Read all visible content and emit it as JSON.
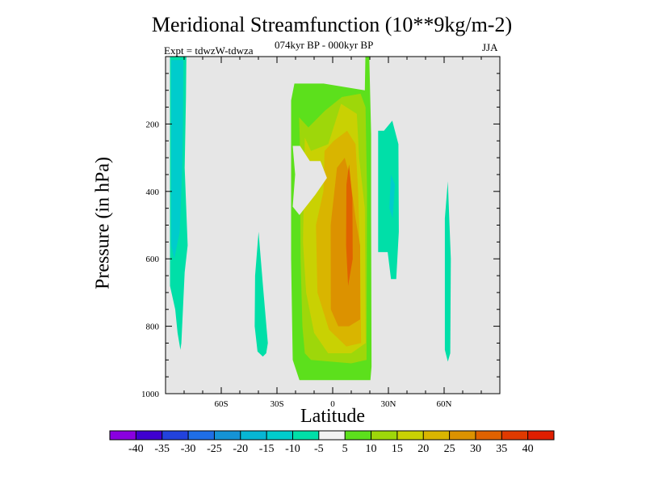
{
  "chart_data": {
    "type": "heatmap",
    "title": "Meridional Streamfunction (10**9kg/m-2)",
    "subtitle": "074kyr BP - 000kyr BP",
    "expt_label": "Expt = tdwzW-tdwza",
    "season": "JJA",
    "xlabel": "Latitude",
    "ylabel": "Pressure (in hPa)",
    "xlim": [
      -90,
      90
    ],
    "ylim": [
      1000,
      0
    ],
    "x_ticks": [
      {
        "value": -60,
        "label": "60S"
      },
      {
        "value": -30,
        "label": "30S"
      },
      {
        "value": 0,
        "label": "0"
      },
      {
        "value": 30,
        "label": "30N"
      },
      {
        "value": 60,
        "label": "60N"
      }
    ],
    "y_ticks": [
      {
        "value": 200,
        "label": "200"
      },
      {
        "value": 400,
        "label": "400"
      },
      {
        "value": 600,
        "label": "600"
      },
      {
        "value": 800,
        "label": "800"
      },
      {
        "value": 1000,
        "label": "1000"
      }
    ],
    "background_color": "#e6e6e6",
    "colorbar": {
      "levels": [
        "-40",
        "-35",
        "-30",
        "-25",
        "-20",
        "-15",
        "-10",
        "-5",
        "5",
        "10",
        "15",
        "20",
        "25",
        "30",
        "35",
        "40"
      ],
      "colors": [
        "#8a00e0",
        "#3f00d0",
        "#2242dc",
        "#1f6ee6",
        "#1593d6",
        "#07b6d4",
        "#00cccc",
        "#00dfa8",
        "#f2f2f2",
        "#5ce01c",
        "#9ed70a",
        "#c9d103",
        "#d9b500",
        "#dc9200",
        "#e06200",
        "#e03a00",
        "#e01e00"
      ]
    },
    "regions": [
      {
        "name": "sh-polar-negative",
        "level": -10,
        "points": [
          [
            -87.6,
            0
          ],
          [
            -78.8,
            0
          ],
          [
            -79,
            120
          ],
          [
            -79.7,
            330
          ],
          [
            -78.1,
            560
          ],
          [
            -79.7,
            640
          ],
          [
            -81.5,
            850
          ],
          [
            -82,
            870
          ],
          [
            -83.5,
            820
          ],
          [
            -84.8,
            750
          ],
          [
            -87.6,
            680
          ]
        ]
      },
      {
        "name": "sh-polar-core",
        "level": -15,
        "points": [
          [
            -87,
            10
          ],
          [
            -80.4,
            10
          ],
          [
            -80.6,
            200
          ],
          [
            -81,
            330
          ],
          [
            -82.4,
            520
          ],
          [
            -85.3,
            600
          ],
          [
            -86.9,
            560
          ]
        ]
      },
      {
        "name": "sh-midlat-negative",
        "level": -10,
        "points": [
          [
            -39.9,
            520
          ],
          [
            -37.4,
            690
          ],
          [
            -34.9,
            850
          ],
          [
            -35.8,
            880
          ],
          [
            -37.6,
            890
          ],
          [
            -40.5,
            875
          ],
          [
            -42,
            800
          ],
          [
            -41.8,
            650
          ]
        ]
      },
      {
        "name": "nh-subtropic-negative",
        "level": -10,
        "points": [
          [
            24.5,
            220
          ],
          [
            27.6,
            220
          ],
          [
            32.1,
            190
          ],
          [
            35.4,
            260
          ],
          [
            35.6,
            520
          ],
          [
            34.2,
            660
          ],
          [
            31.4,
            660
          ],
          [
            29.6,
            580
          ],
          [
            24.5,
            580
          ]
        ]
      },
      {
        "name": "nh-subtropic-core",
        "level": -15,
        "points": [
          [
            31.4,
            350
          ],
          [
            33.5,
            380
          ],
          [
            32.3,
            480
          ],
          [
            30.5,
            450
          ]
        ]
      },
      {
        "name": "nh-midlat-negative",
        "level": -10,
        "points": [
          [
            62,
            370
          ],
          [
            60.4,
            480
          ],
          [
            60.4,
            870
          ],
          [
            62,
            905
          ],
          [
            63.3,
            880
          ],
          [
            63.6,
            600
          ]
        ]
      },
      {
        "name": "hadley-5",
        "level": 5,
        "points": [
          [
            -22.4,
            130
          ],
          [
            -20.6,
            80
          ],
          [
            -4.9,
            80
          ],
          [
            17.3,
            100
          ],
          [
            17.6,
            0
          ],
          [
            19.7,
            0
          ],
          [
            20.7,
            230
          ],
          [
            20.7,
            470
          ],
          [
            20.9,
            920
          ],
          [
            20.3,
            960
          ],
          [
            -15,
            960
          ],
          [
            -17.9,
            960
          ],
          [
            -21.5,
            900
          ],
          [
            -22.4,
            600
          ],
          [
            -22.4,
            300
          ]
        ]
      },
      {
        "name": "hadley-10",
        "level": 10,
        "points": [
          [
            -18.1,
            180
          ],
          [
            -13.1,
            210
          ],
          [
            -4.1,
            160
          ],
          [
            5,
            120
          ],
          [
            15,
            110
          ],
          [
            17.7,
            150
          ],
          [
            18.5,
            400
          ],
          [
            18.2,
            900
          ],
          [
            10,
            910
          ],
          [
            -11.7,
            900
          ],
          [
            -15,
            880
          ],
          [
            -16.3,
            800
          ],
          [
            -17.3,
            600
          ],
          [
            -17.7,
            250
          ]
        ]
      },
      {
        "name": "hadley-15",
        "level": 15,
        "points": [
          [
            -15,
            240
          ],
          [
            -11.7,
            280
          ],
          [
            -2.4,
            260
          ],
          [
            4.5,
            140
          ],
          [
            13,
            170
          ],
          [
            14.2,
            300
          ],
          [
            17.3,
            450
          ],
          [
            17.8,
            850
          ],
          [
            10,
            880
          ],
          [
            -2.5,
            880
          ],
          [
            -10,
            820
          ],
          [
            -14.3,
            700
          ],
          [
            -16,
            550
          ]
        ]
      },
      {
        "name": "hadley-20",
        "level": 20,
        "points": [
          [
            -4.4,
            280
          ],
          [
            0.6,
            250
          ],
          [
            7.8,
            220
          ],
          [
            12.3,
            260
          ],
          [
            13.7,
            400
          ],
          [
            14.8,
            600
          ],
          [
            15.3,
            850
          ],
          [
            7.4,
            860
          ],
          [
            -2,
            810
          ],
          [
            -8.2,
            700
          ],
          [
            -9,
            500
          ],
          [
            -5,
            400
          ]
        ]
      },
      {
        "name": "hadley-25",
        "level": 25,
        "points": [
          [
            -1.1,
            500
          ],
          [
            2.3,
            330
          ],
          [
            6.5,
            300
          ],
          [
            9.4,
            360
          ],
          [
            12.3,
            480
          ],
          [
            14.8,
            560
          ],
          [
            14.8,
            780
          ],
          [
            8.8,
            800
          ],
          [
            3,
            800
          ],
          [
            -1,
            750
          ]
        ]
      },
      {
        "name": "hadley-30",
        "level": 30,
        "points": [
          [
            7.4,
            380
          ],
          [
            8.8,
            320
          ],
          [
            10.6,
            420
          ],
          [
            10.8,
            600
          ],
          [
            8.3,
            680
          ],
          [
            7.2,
            560
          ]
        ]
      },
      {
        "name": "hadley-gap",
        "level": -5,
        "points": [
          [
            -21.5,
            265
          ],
          [
            -17.6,
            265
          ],
          [
            -12.3,
            310
          ],
          [
            -6.6,
            310
          ],
          [
            -3.1,
            360
          ],
          [
            -9.4,
            410
          ],
          [
            -17.9,
            470
          ],
          [
            -21.5,
            445
          ],
          [
            -20.2,
            350
          ]
        ]
      }
    ]
  }
}
